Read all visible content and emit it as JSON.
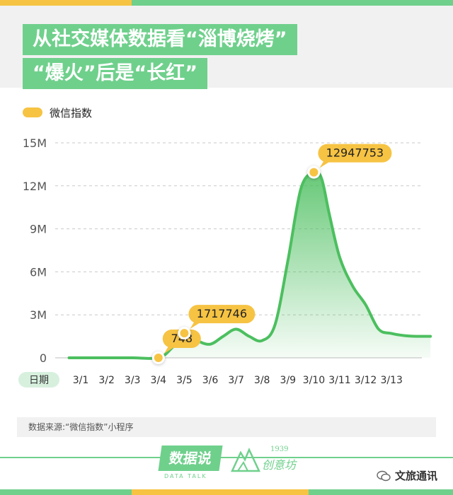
{
  "header": {
    "title_line1": "从社交媒体数据看“淄博烧烤”",
    "title_line2": "“爆火”后是“长红”"
  },
  "legend": {
    "label": "微信指数"
  },
  "footer": {
    "source": "数据来源:“微信指数”小程序",
    "logo_main": "数据说",
    "logo_sub": "DATA TALK",
    "logo2_year": "1939",
    "logo2_text": "创意坊",
    "watermark": "文旅通讯"
  },
  "colors": {
    "accent_green": "#6fd08c",
    "line_green": "#4cbf5f",
    "label_yellow": "#f6c343",
    "band_gray": "#f1f1f1"
  },
  "chart_data": {
    "type": "area",
    "xaxis_title": "日期",
    "categories": [
      "3/1",
      "3/2",
      "3/3",
      "3/4",
      "3/5",
      "3/6",
      "3/7",
      "3/8",
      "3/9",
      "3/10",
      "3/11",
      "3/12",
      "3/13"
    ],
    "y_ticks": [
      "0",
      "3M",
      "6M",
      "9M",
      "12M",
      "15M"
    ],
    "ylim": [
      0,
      15000000
    ],
    "series": [
      {
        "name": "微信指数",
        "x": [
          -0.45,
          0,
          1,
          2,
          3,
          3.5,
          4,
          4.5,
          5,
          5.5,
          6,
          6.5,
          7,
          7.5,
          8,
          8.5,
          9,
          9.3,
          9.6,
          10,
          10.5,
          11,
          11.5,
          12,
          12.5,
          13,
          13.5
        ],
        "values": [
          748,
          748,
          748,
          748,
          748,
          650000,
          1717746,
          1200000,
          950000,
          1500000,
          2000000,
          1500000,
          1200000,
          2300000,
          6800000,
          11800000,
          12947753,
          12500000,
          10000000,
          7000000,
          5000000,
          3700000,
          2000000,
          1700000,
          1550000,
          1500000,
          1500000
        ]
      }
    ],
    "annotations": [
      {
        "x": 3,
        "value": 748,
        "label": "748"
      },
      {
        "x": 4,
        "value": 1717746,
        "label": "1717746"
      },
      {
        "x": 9,
        "value": 12947753,
        "label": "12947753"
      }
    ],
    "grid": true,
    "legend_position": "top-left"
  }
}
